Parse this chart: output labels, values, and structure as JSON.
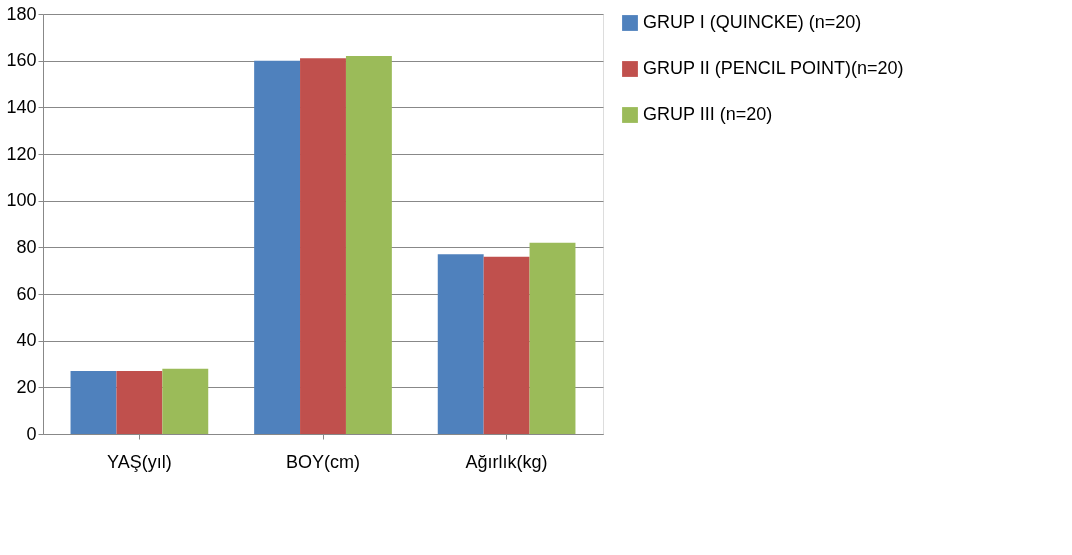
{
  "chart_data": {
    "type": "bar",
    "categories": [
      "YAŞ(yıl)",
      "BOY(cm)",
      "Ağırlık(kg)"
    ],
    "series": [
      {
        "name": "GRUP I (QUINCKE) (n=20)",
        "color": "#4f81bd",
        "values": [
          27,
          160,
          77
        ]
      },
      {
        "name": "GRUP II (PENCIL POINT)(n=20)",
        "color": "#c0504d",
        "values": [
          27,
          161,
          76
        ]
      },
      {
        "name": "GRUP III (n=20)",
        "color": "#9bbb59",
        "values": [
          28,
          162,
          82
        ]
      }
    ],
    "ylim": [
      0,
      180
    ],
    "yticks": [
      0,
      20,
      40,
      60,
      80,
      100,
      120,
      140,
      160,
      180
    ],
    "grid": "y",
    "legend": "right"
  }
}
